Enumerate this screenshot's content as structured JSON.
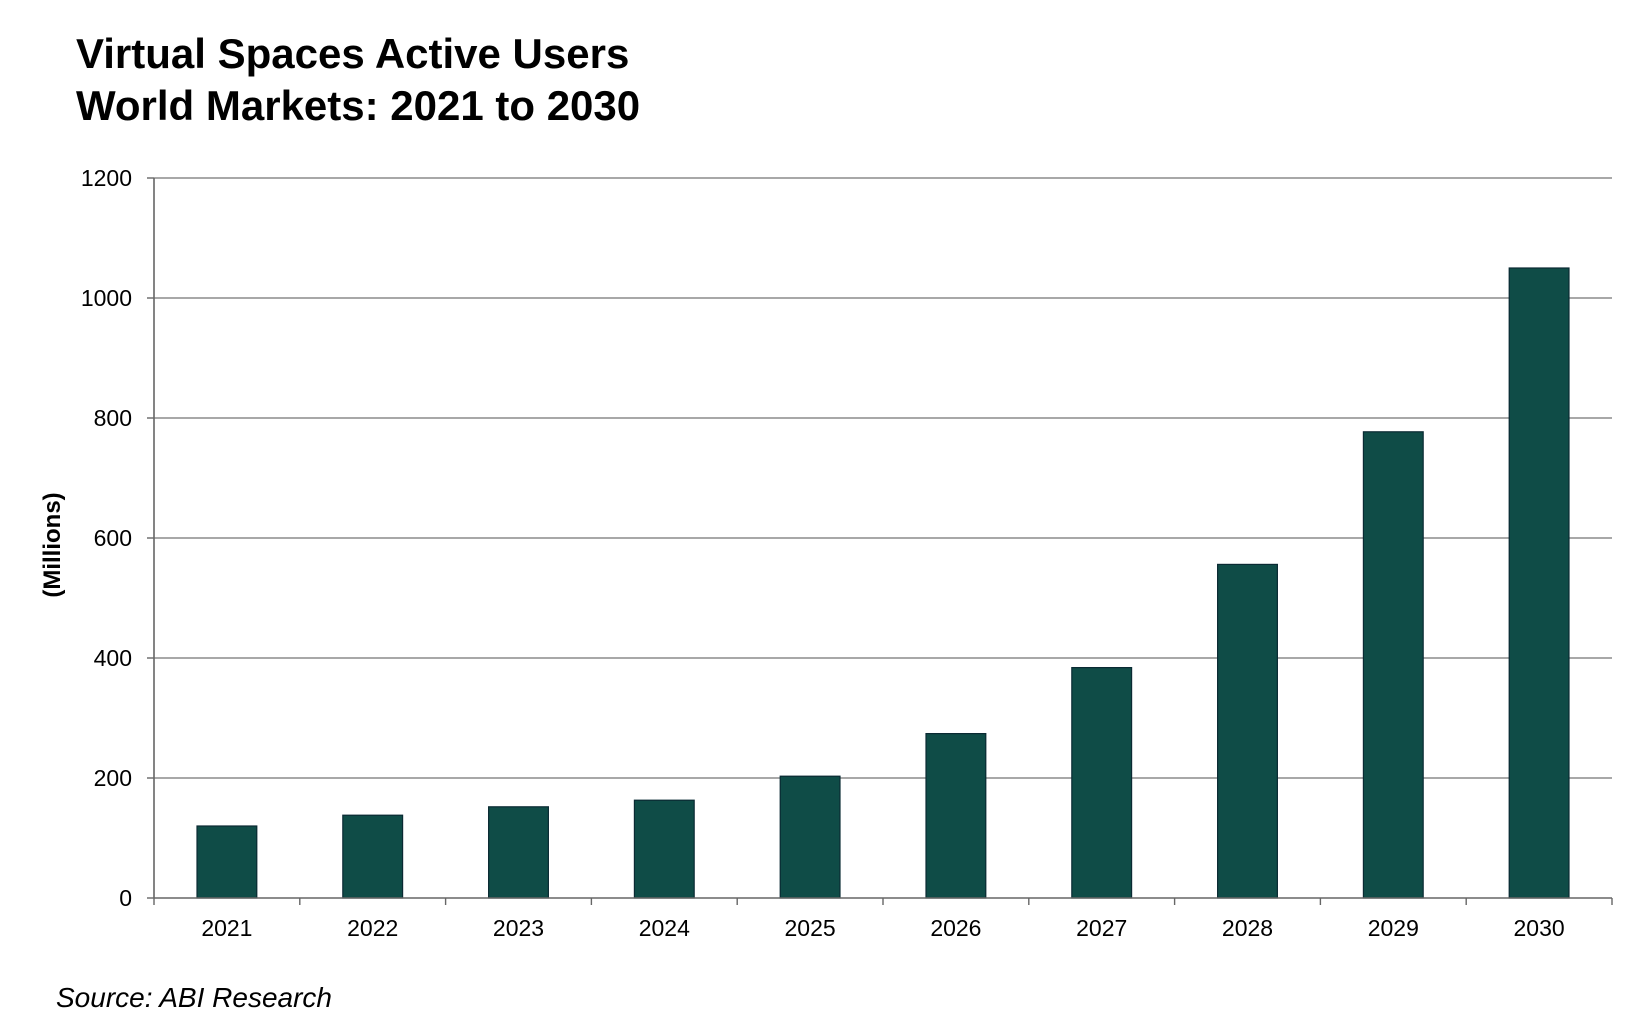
{
  "chart_data": {
    "type": "bar",
    "title": "Virtual Spaces Active Users",
    "subtitle": "World Markets: 2021 to 2030",
    "xlabel": "",
    "ylabel": "(Millions)",
    "categories": [
      "2021",
      "2022",
      "2023",
      "2024",
      "2025",
      "2026",
      "2027",
      "2028",
      "2029",
      "2030"
    ],
    "values": [
      120,
      138,
      152,
      163,
      203,
      274,
      384,
      556,
      777,
      1050
    ],
    "ylim": [
      0,
      1200
    ],
    "yticks": [
      "0",
      "200",
      "400",
      "600",
      "800",
      "1000",
      "1200"
    ],
    "grid": true,
    "legend": "none",
    "bar_color": "#0f4c47"
  },
  "source": "Source: ABI Research"
}
